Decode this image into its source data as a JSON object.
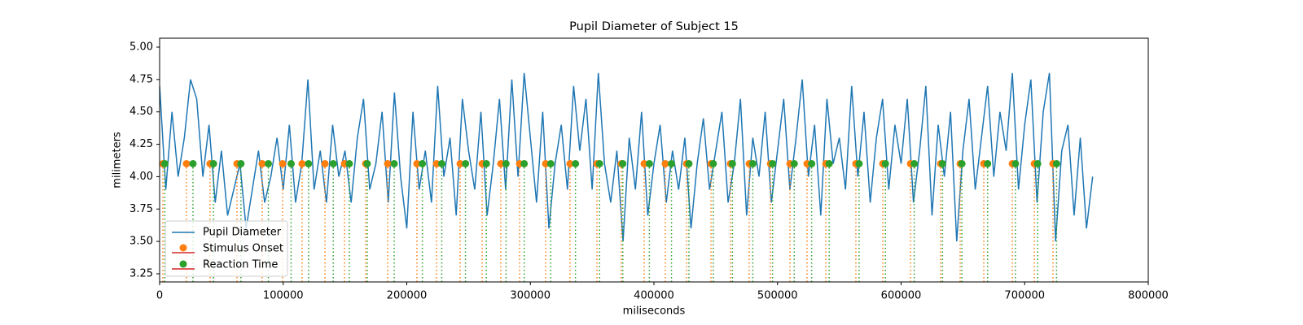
{
  "chart_data": {
    "type": "line",
    "title": "Pupil Diameter of Subject 15",
    "xlabel": "miliseconds",
    "ylabel": "milimeters",
    "xlim": [
      0,
      800000
    ],
    "xticks": [
      0,
      100000,
      200000,
      300000,
      400000,
      500000,
      600000,
      700000,
      800000
    ],
    "ylim": [
      3.187,
      5.069
    ],
    "yticks": [
      3.25,
      {
        "value": 3.5,
        "label": "3.50"
      },
      3.75,
      {
        "value": 4,
        "label": "4.00"
      },
      4.25,
      {
        "value": 4.5,
        "label": "4.50"
      },
      4.75,
      {
        "value": 5,
        "label": "5.00"
      }
    ],
    "legend": "lower left",
    "series": [
      {
        "name": "Pupil Diameter",
        "color": "#1f77b4",
        "style": "line",
        "x": [
          0,
          5000,
          10000,
          15000,
          20000,
          25000,
          30000,
          35000,
          40000,
          45000,
          50000,
          55000,
          60000,
          65000,
          70000,
          75000,
          80000,
          85000,
          90000,
          95000,
          100000,
          105000,
          110000,
          115000,
          120000,
          125000,
          130000,
          135000,
          140000,
          145000,
          150000,
          155000,
          160000,
          165000,
          170000,
          175000,
          180000,
          185000,
          190000,
          195000,
          200000,
          205000,
          210000,
          215000,
          220000,
          225000,
          230000,
          235000,
          240000,
          245000,
          250000,
          255000,
          260000,
          265000,
          270000,
          275000,
          280000,
          285000,
          290000,
          295000,
          300000,
          305000,
          310000,
          315000,
          320000,
          325000,
          330000,
          335000,
          340000,
          345000,
          350000,
          355000,
          360000,
          365000,
          370000,
          375000,
          380000,
          385000,
          390000,
          395000,
          400000,
          405000,
          410000,
          415000,
          420000,
          425000,
          430000,
          435000,
          440000,
          445000,
          450000,
          455000,
          460000,
          465000,
          470000,
          475000,
          480000,
          485000,
          490000,
          495000,
          500000,
          505000,
          510000,
          515000,
          520000,
          525000,
          530000,
          535000,
          540000,
          545000,
          550000,
          555000,
          560000,
          565000,
          570000,
          575000,
          580000,
          585000,
          590000,
          595000,
          600000,
          605000,
          610000,
          615000,
          620000,
          625000,
          630000,
          635000,
          640000,
          645000,
          650000,
          655000,
          660000,
          665000,
          670000,
          675000,
          680000,
          685000,
          690000,
          695000,
          700000,
          705000,
          710000,
          715000,
          720000,
          725000,
          730000,
          735000,
          740000,
          745000,
          750000,
          755000
        ],
        "values": [
          4.7,
          3.9,
          4.5,
          4.0,
          4.3,
          4.75,
          4.6,
          4.0,
          4.4,
          3.8,
          4.2,
          3.7,
          3.9,
          4.1,
          3.6,
          3.9,
          4.2,
          3.8,
          4.0,
          4.3,
          3.9,
          4.4,
          3.8,
          4.1,
          4.75,
          3.9,
          4.2,
          3.8,
          4.4,
          4.0,
          4.2,
          3.8,
          4.3,
          4.6,
          3.9,
          4.1,
          4.5,
          3.8,
          4.65,
          4.0,
          3.6,
          4.5,
          3.9,
          4.2,
          3.8,
          4.7,
          4.0,
          4.3,
          3.7,
          4.6,
          4.2,
          3.9,
          4.5,
          3.7,
          4.1,
          4.6,
          3.9,
          4.75,
          4.0,
          4.8,
          4.3,
          3.8,
          4.5,
          3.6,
          4.1,
          4.4,
          3.9,
          4.7,
          4.2,
          4.6,
          3.9,
          4.8,
          4.1,
          3.8,
          4.2,
          3.5,
          4.3,
          3.9,
          4.5,
          3.7,
          4.1,
          4.4,
          3.8,
          4.2,
          3.9,
          4.3,
          3.6,
          4.1,
          4.45,
          3.9,
          4.2,
          4.5,
          3.8,
          4.1,
          4.6,
          3.7,
          4.3,
          4.0,
          4.5,
          3.8,
          4.2,
          4.6,
          3.9,
          4.3,
          4.75,
          4.0,
          4.4,
          3.7,
          4.6,
          4.1,
          4.3,
          3.9,
          4.7,
          4.0,
          4.5,
          3.8,
          4.3,
          4.6,
          3.9,
          4.4,
          4.1,
          4.6,
          3.8,
          4.2,
          4.7,
          3.7,
          4.4,
          4.0,
          4.5,
          3.5,
          4.2,
          4.6,
          3.9,
          4.3,
          4.7,
          4.0,
          4.5,
          4.2,
          4.8,
          3.9,
          4.4,
          4.75,
          3.8,
          4.5,
          4.8,
          3.5,
          4.2,
          4.4,
          3.7,
          4.3,
          3.6,
          4.0
        ]
      },
      {
        "name": "Stimulus Onset",
        "color": "#ff7f0e",
        "style": "stem",
        "legend_line_color": "#d62728",
        "x": [
          2600,
          21700,
          40800,
          62600,
          83000,
          99500,
          115300,
          133800,
          149600,
          166700,
          184500,
          208200,
          224100,
          243200,
          261000,
          276100,
          291300,
          312400,
          332100,
          353900,
          373600,
          392100,
          409200,
          426400,
          446200,
          461900,
          477100,
          494300,
          510100,
          523900,
          539100,
          563400,
          585200,
          607600,
          632000,
          647800,
          666900,
          690000,
          707800,
          722900
        ],
        "values": [
          4.1,
          4.1,
          4.1,
          4.1,
          4.1,
          4.1,
          4.1,
          4.1,
          4.1,
          4.1,
          4.1,
          4.1,
          4.1,
          4.1,
          4.1,
          4.1,
          4.1,
          4.1,
          4.1,
          4.1,
          4.1,
          4.1,
          4.1,
          4.1,
          4.1,
          4.1,
          4.1,
          4.1,
          4.1,
          4.1,
          4.1,
          4.1,
          4.1,
          4.1,
          4.1,
          4.1,
          4.1,
          4.1,
          4.1,
          4.1
        ]
      },
      {
        "name": "Reaction Time",
        "color": "#2ca02c",
        "style": "stem",
        "legend_line_color": "#d62728",
        "x": [
          4200,
          27000,
          43600,
          65800,
          88000,
          106400,
          120500,
          140500,
          153500,
          168000,
          189800,
          212600,
          228300,
          247500,
          264400,
          280300,
          295000,
          316500,
          336500,
          356000,
          374800,
          396300,
          414200,
          428300,
          448000,
          463500,
          480000,
          496000,
          513500,
          527600,
          541800,
          566000,
          587300,
          610600,
          633500,
          649200,
          670000,
          692500,
          710500,
          725800
        ],
        "values": [
          4.1,
          4.1,
          4.1,
          4.1,
          4.1,
          4.1,
          4.1,
          4.1,
          4.1,
          4.1,
          4.1,
          4.1,
          4.1,
          4.1,
          4.1,
          4.1,
          4.1,
          4.1,
          4.1,
          4.1,
          4.1,
          4.1,
          4.1,
          4.1,
          4.1,
          4.1,
          4.1,
          4.1,
          4.1,
          4.1,
          4.1,
          4.1,
          4.1,
          4.1,
          4.1,
          4.1,
          4.1,
          4.1,
          4.1,
          4.1
        ]
      }
    ]
  }
}
